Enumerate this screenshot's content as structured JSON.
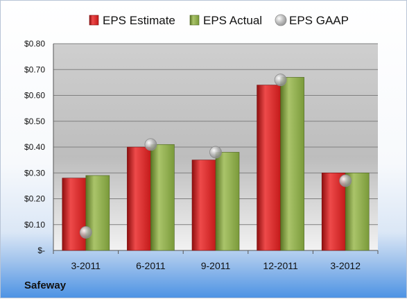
{
  "company": "Safeway",
  "chart_data": {
    "type": "bar",
    "categories": [
      "3-2011",
      "6-2011",
      "9-2011",
      "12-2011",
      "3-2012"
    ],
    "series": [
      {
        "name": "EPS Estimate",
        "type": "bar",
        "color": "#cc1f1f",
        "values": [
          0.28,
          0.4,
          0.35,
          0.64,
          0.3
        ]
      },
      {
        "name": "EPS Actual",
        "type": "bar",
        "color": "#7a9a3a",
        "values": [
          0.29,
          0.41,
          0.38,
          0.67,
          0.3
        ]
      },
      {
        "name": "EPS GAAP",
        "type": "marker",
        "color": "#a9a9a9",
        "values": [
          0.07,
          0.41,
          0.38,
          0.66,
          0.27
        ]
      }
    ],
    "ylim": [
      0,
      0.8
    ],
    "yticks": [
      0,
      0.1,
      0.2,
      0.3,
      0.4,
      0.5,
      0.6,
      0.7,
      0.8
    ],
    "ytick_labels": [
      "$-",
      "$0.10",
      "$0.20",
      "$0.30",
      "$0.40",
      "$0.50",
      "$0.60",
      "$0.70",
      "$0.80"
    ],
    "grid": true,
    "legend_position": "top"
  }
}
